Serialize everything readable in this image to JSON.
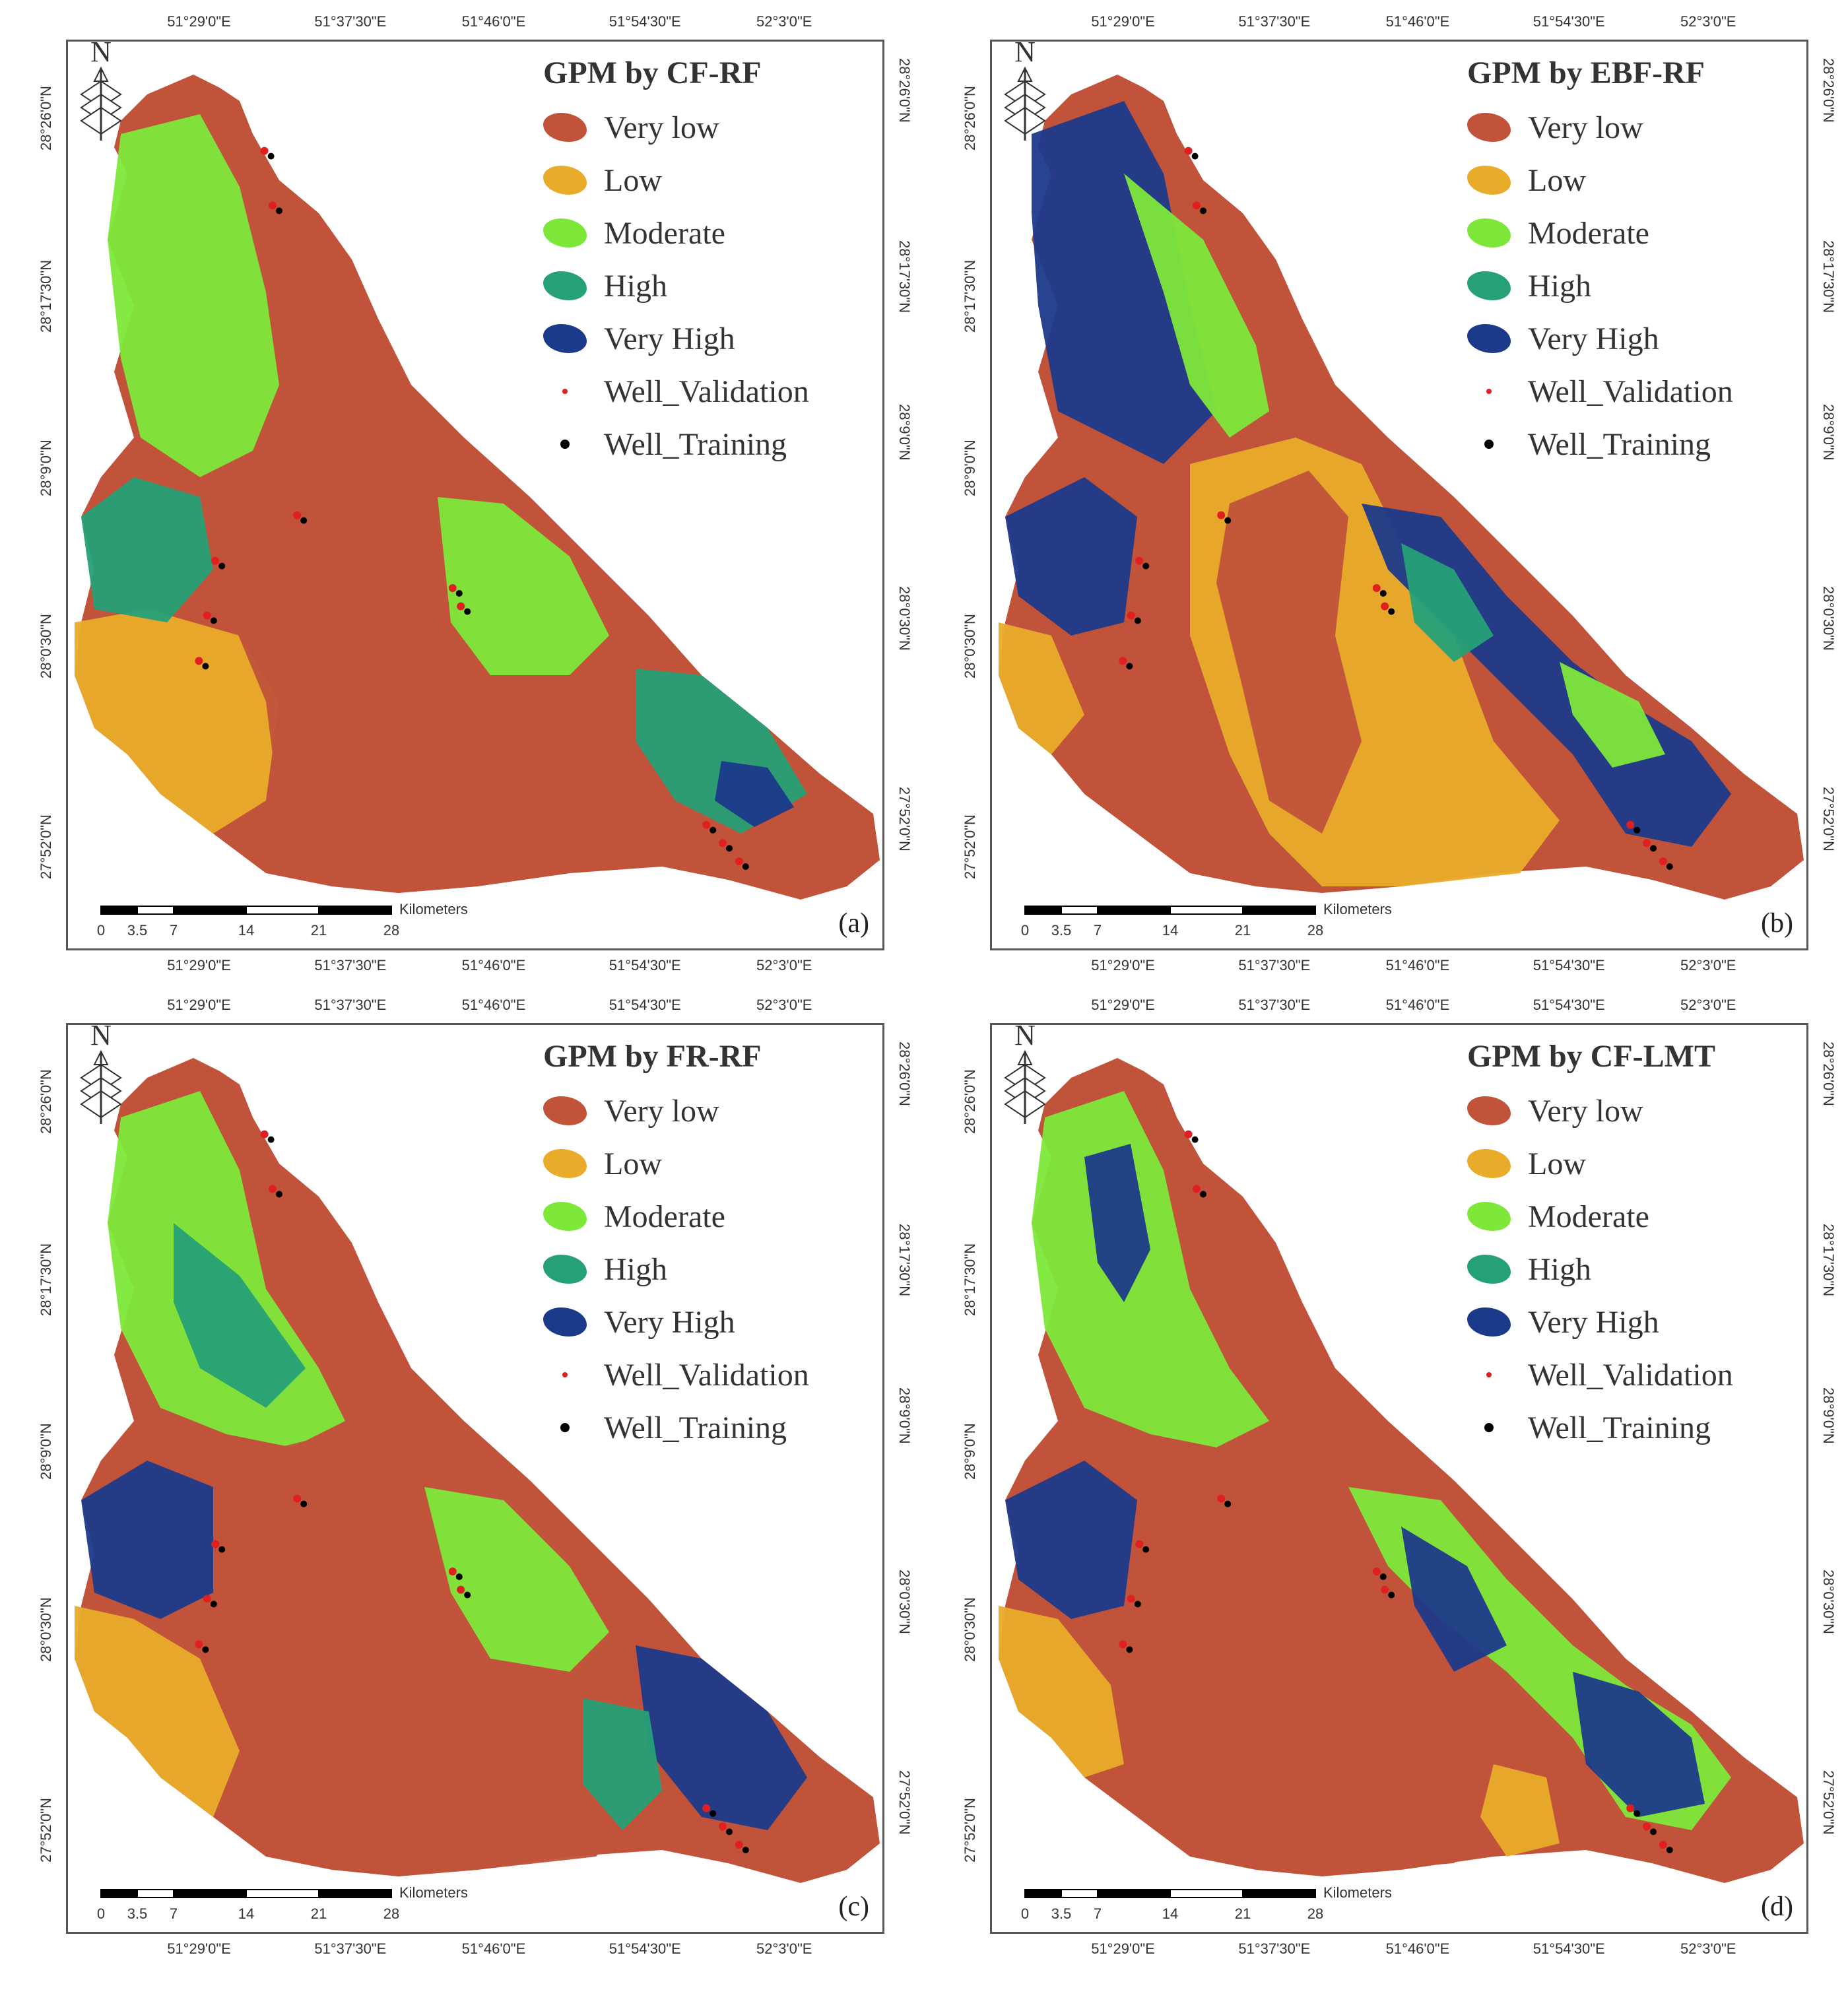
{
  "colors": {
    "very_low": "#c0533a",
    "low": "#e8ac2a",
    "moderate": "#7ee83a",
    "high": "#26a076",
    "very_high": "#1c3a8a",
    "well_validation": "#e02020",
    "well_training": "#000000"
  },
  "legend_labels": {
    "very_low": "Very low",
    "low": "Low",
    "moderate": "Moderate",
    "high": "High",
    "very_high": "Very High",
    "well_validation": "Well_Validation",
    "well_training": "Well_Training"
  },
  "north_label": "N",
  "lon_ticks": [
    "51°29'0\"E",
    "51°37'30\"E",
    "51°46'0\"E",
    "51°54'30\"E",
    "52°3'0\"E"
  ],
  "lat_ticks": [
    "28°26'0\"N",
    "28°17'30\"N",
    "28°9'0\"N",
    "28°0'30\"N",
    "27°52'0\"N"
  ],
  "scale_bar": {
    "unit": "Kilometers",
    "ticks": [
      "0",
      "3.5",
      "7",
      "14",
      "21",
      "28"
    ]
  },
  "panels": [
    {
      "title": "GPM by CF-RF",
      "letter": "(a)"
    },
    {
      "title": "GPM by EBF-RF",
      "letter": "(b)"
    },
    {
      "title": "GPM by FR-RF",
      "letter": "(c)"
    },
    {
      "title": "GPM by CF-LMT",
      "letter": "(d)"
    }
  ]
}
